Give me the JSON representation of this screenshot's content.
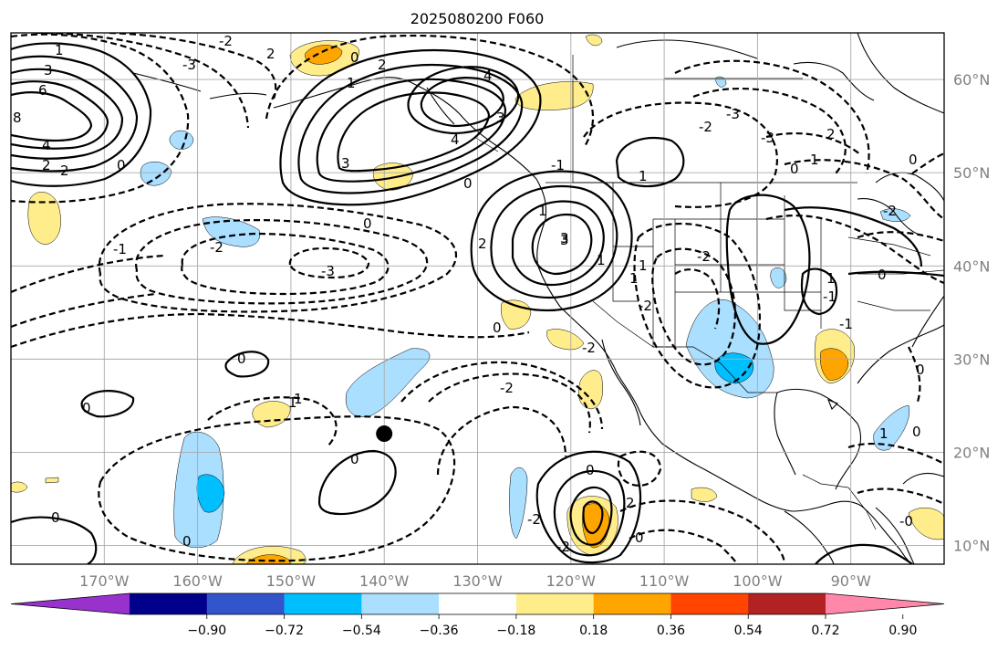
{
  "title": "2025080200 F060",
  "map": {
    "lon_range": [
      -180,
      -80
    ],
    "lat_range": [
      8,
      65
    ],
    "lon_ticks": [
      {
        "value": -170,
        "label": "170°W"
      },
      {
        "value": -160,
        "label": "160°W"
      },
      {
        "value": -150,
        "label": "150°W"
      },
      {
        "value": -140,
        "label": "140°W"
      },
      {
        "value": -130,
        "label": "130°W"
      },
      {
        "value": -120,
        "label": "120°W"
      },
      {
        "value": -110,
        "label": "110°W"
      },
      {
        "value": -100,
        "label": "100°W"
      },
      {
        "value": -90,
        "label": "90°W"
      }
    ],
    "lat_ticks": [
      {
        "value": 10,
        "label": "10°N"
      },
      {
        "value": 20,
        "label": "20°N"
      },
      {
        "value": 30,
        "label": "30°N"
      },
      {
        "value": 40,
        "label": "40°N"
      },
      {
        "value": 50,
        "label": "50°N"
      },
      {
        "value": 60,
        "label": "60°N"
      }
    ],
    "grid": true,
    "marker": {
      "lon": -140,
      "lat": 22
    }
  },
  "colorbar": {
    "colors": [
      "#9932cc",
      "#00008b",
      "#3355cc",
      "#00bfff",
      "#aadfff",
      "#ffffff",
      "#ffec8b",
      "#ffa500",
      "#ff4500",
      "#b22222",
      "#ff88aa"
    ],
    "ticks": [
      "−0.90",
      "−0.72",
      "−0.54",
      "−0.36",
      "−0.18",
      "0.18",
      "0.36",
      "0.54",
      "0.72",
      "0.90"
    ]
  },
  "contour_labels": [
    "1",
    "3",
    "6",
    "8",
    "4",
    "2",
    "2",
    "0",
    "-2",
    "-3",
    "2",
    "0",
    "1",
    "2",
    "3",
    "4",
    "4",
    "3",
    "0",
    "0",
    "1",
    "3",
    "-1",
    "-2",
    "-3",
    "1",
    "-2",
    "1",
    "2",
    "3",
    "1",
    "-1",
    "1",
    "1",
    "-2",
    "-2",
    "-3",
    "-2",
    "-3",
    "0",
    "1",
    "0",
    "2",
    "-2",
    "-1",
    "-1",
    "1",
    "0",
    "0",
    "0",
    "0",
    "1",
    "-2",
    "0",
    "0",
    "0",
    "0",
    "-2",
    "2",
    "0",
    "-0",
    "-2",
    "1",
    "0",
    "0"
  ]
}
